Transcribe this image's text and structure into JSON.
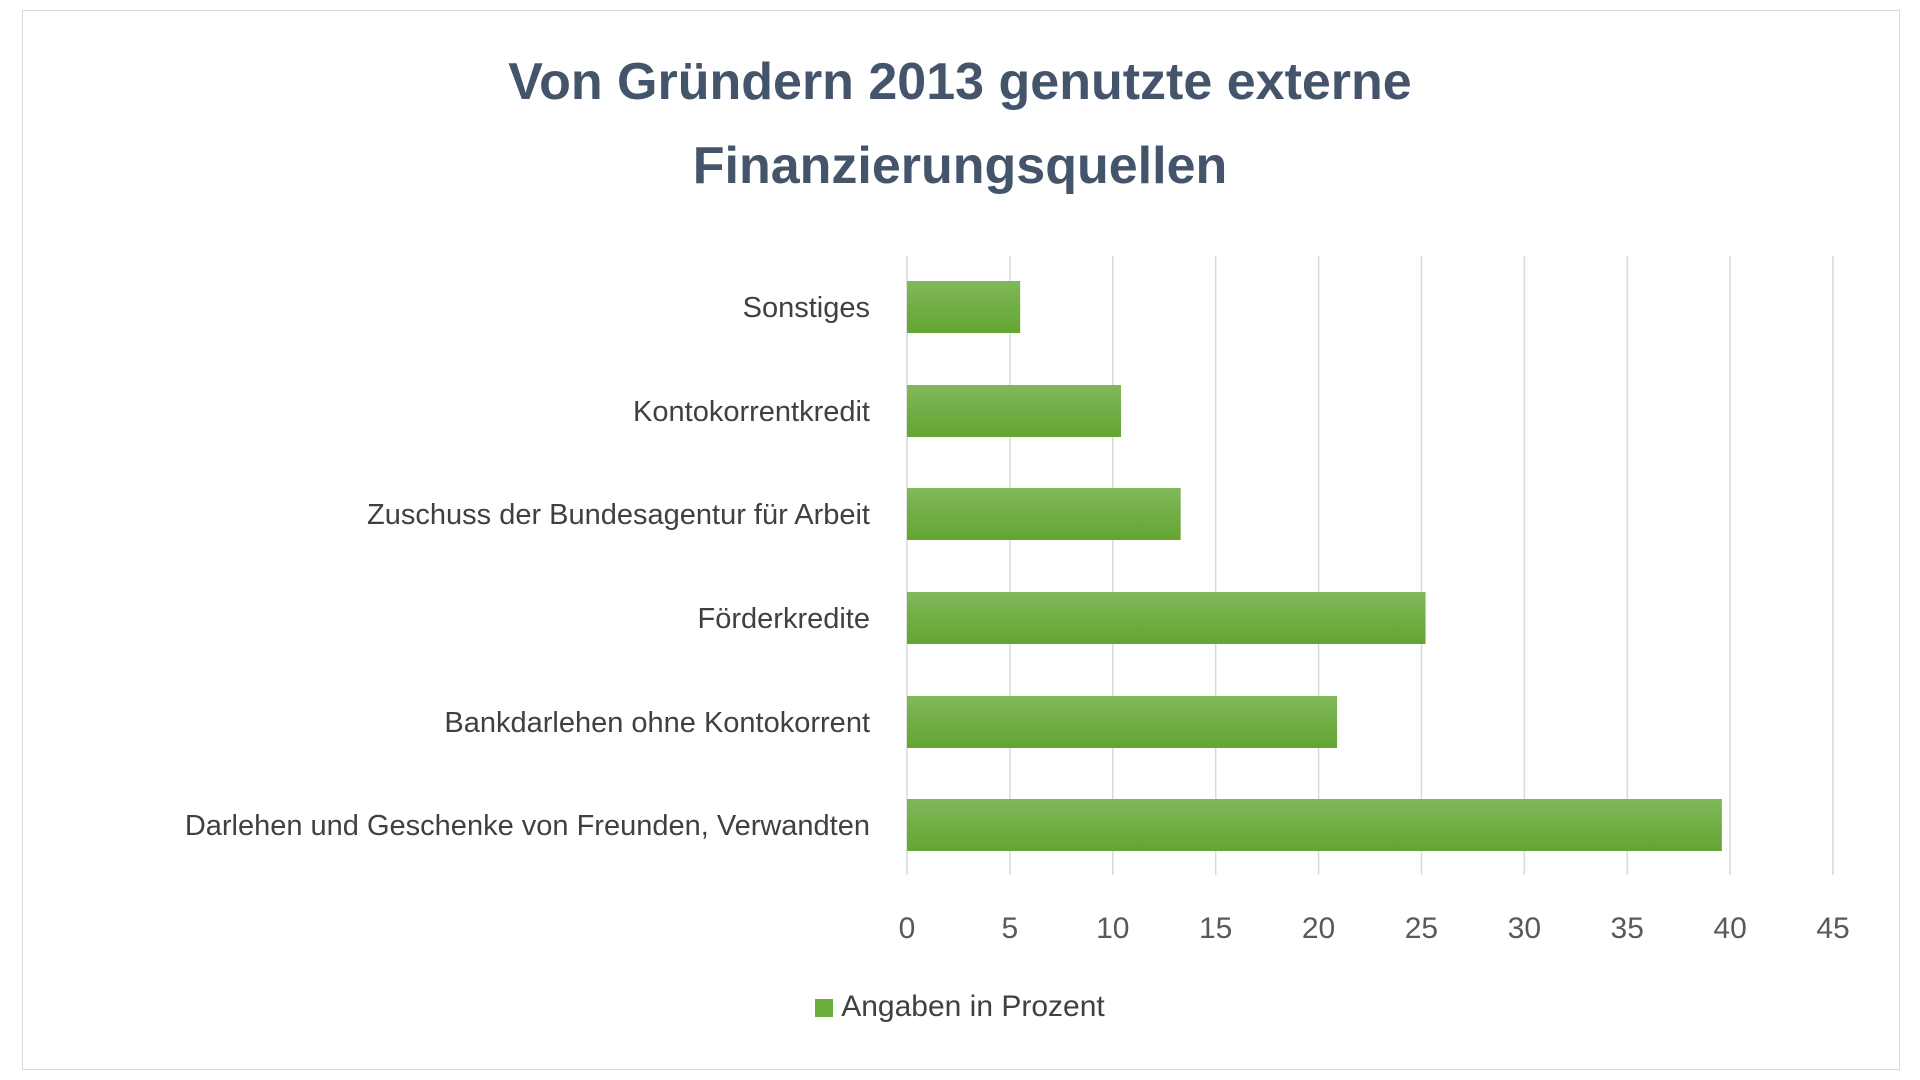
{
  "chart_data": {
    "type": "bar",
    "orientation": "horizontal",
    "title": "Von Gründern 2013 genutzte externe Finanzierungsquellen",
    "title_lines": [
      "Von Gründern 2013 genutzte externe",
      "Finanzierungsquellen"
    ],
    "categories": [
      "Sonstiges",
      "Kontokorrentkredit",
      "Zuschuss der Bundesagentur für Arbeit",
      "Förderkredite",
      "Bankdarlehen ohne Kontokorrent",
      "Darlehen und Geschenke von Freunden, Verwandten"
    ],
    "series": [
      {
        "name": "Angaben in Prozent",
        "values": [
          5.5,
          10.4,
          13.3,
          25.2,
          20.9,
          39.6
        ],
        "color": "#6aad3d"
      }
    ],
    "xlim": [
      0,
      45
    ],
    "xticks": [
      "0",
      "5",
      "10",
      "15",
      "20",
      "25",
      "30",
      "35",
      "40",
      "45"
    ],
    "grid": true,
    "legend": "bottom"
  }
}
